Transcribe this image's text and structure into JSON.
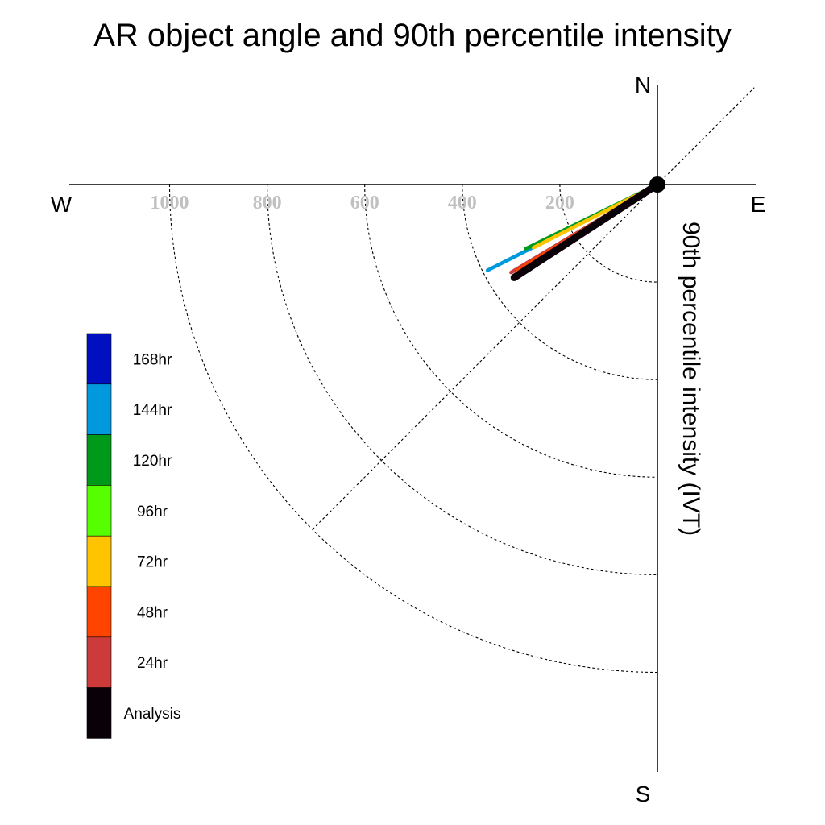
{
  "chart_data": {
    "type": "polar-vector",
    "title": "AR object angle and 90th percentile intensity",
    "radial_axis_label": "90th percentile intensity (IVT)",
    "compass": {
      "north": "N",
      "south": "S",
      "east": "E",
      "west": "W"
    },
    "radial_ticks": [
      200,
      400,
      600,
      800,
      1000
    ],
    "radial_tick_labels": [
      "200",
      "400",
      "600",
      "800",
      "1000"
    ],
    "grid": "dashed arcs every 200 IVT, dashed diagonal at 45°",
    "legend": {
      "placement": "left",
      "entries": [
        {
          "label": "168hr",
          "color": "#0010c0"
        },
        {
          "label": "144hr",
          "color": "#0099dd"
        },
        {
          "label": "120hr",
          "color": "#009a1a"
        },
        {
          "label": "96hr",
          "color": "#55ff00"
        },
        {
          "label": "72hr",
          "color": "#ffc400"
        },
        {
          "label": "48hr",
          "color": "#ff4400"
        },
        {
          "label": "24hr",
          "color": "#cc3a3a"
        },
        {
          "label": "Analysis",
          "color": "#0a0008"
        }
      ]
    },
    "vectors": [
      {
        "name": "144hr",
        "angle_deg_below_west": 26.8,
        "intensity": 390,
        "color": "#0099dd"
      },
      {
        "name": "120hr",
        "angle_deg_below_west": 26.0,
        "intensity": 300,
        "color": "#009a1a"
      },
      {
        "name": "72hr",
        "angle_deg_below_west": 27.0,
        "intensity": 285,
        "color": "#ffc400"
      },
      {
        "name": "24hr",
        "angle_deg_below_west": 31.0,
        "intensity": 350,
        "color": "#cc3a3a"
      },
      {
        "name": "48hr",
        "angle_deg_below_west": 31.5,
        "intensity": 335,
        "color": "#ff4400"
      },
      {
        "name": "Analysis",
        "angle_deg_below_west": 33.0,
        "intensity": 350,
        "color": "#0a0008"
      }
    ]
  }
}
